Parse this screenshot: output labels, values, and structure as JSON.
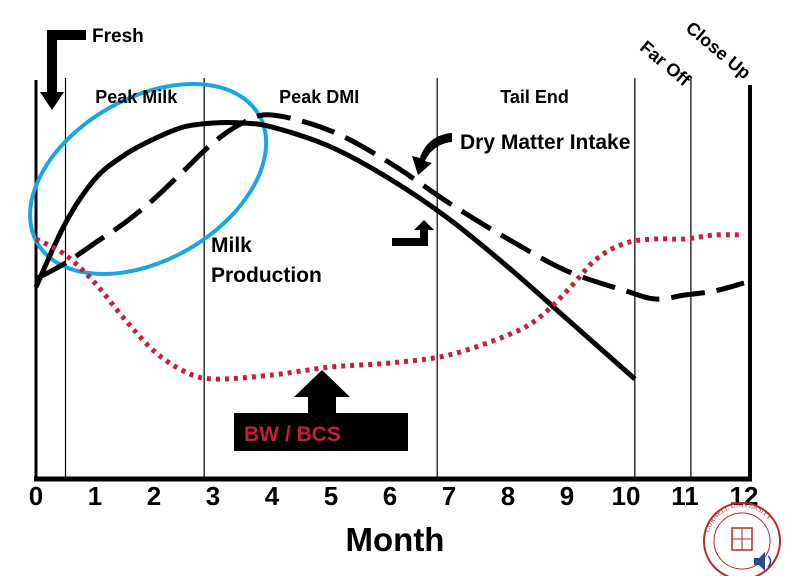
{
  "chart_data": {
    "type": "line",
    "xlabel": "Month",
    "ylabel": "",
    "xlim": [
      0,
      12
    ],
    "ylim": [
      0,
      100
    ],
    "x_ticks": [
      0,
      1,
      2,
      3,
      4,
      5,
      6,
      7,
      8,
      9,
      10,
      11,
      12
    ],
    "phase_dividers": [
      0.5,
      2.85,
      6.8,
      10.15,
      11.1
    ],
    "phases": [
      {
        "label": "Peak Milk",
        "x": 1.7
      },
      {
        "label": "Peak DMI",
        "x": 4.8
      },
      {
        "label": "Tail End",
        "x": 8.45
      },
      {
        "label": "Far Off",
        "x": 10.6,
        "rotated": true
      },
      {
        "label": "Close Up",
        "x": 11.5,
        "rotated": true
      }
    ],
    "annotations": {
      "fresh": "Fresh",
      "dmi": "Dry Matter Intake",
      "milk_line1": "Milk",
      "milk_line2": "Production",
      "bwbcs": "BW / BCS"
    },
    "series": [
      {
        "key": "milk",
        "style": "solid",
        "color": "#000000",
        "x": [
          0,
          0.5,
          1,
          1.5,
          2,
          2.5,
          3,
          3.5,
          4,
          5,
          6,
          7,
          8,
          9,
          10.15
        ],
        "y": [
          48,
          64,
          75,
          81,
          85,
          88,
          89,
          89,
          88,
          83,
          75,
          65,
          53,
          40,
          25
        ]
      },
      {
        "key": "dmi",
        "style": "dashed",
        "color": "#000000",
        "x": [
          0,
          0.5,
          1,
          1.5,
          2,
          2.5,
          3,
          3.5,
          4,
          5,
          6,
          7,
          8,
          9,
          10,
          10.5,
          11,
          11.5,
          12
        ],
        "y": [
          50,
          54,
          59,
          64,
          70,
          77,
          84,
          89,
          91,
          87,
          79,
          69,
          60,
          52,
          47,
          45,
          46,
          47,
          49
        ]
      },
      {
        "key": "bwbcs",
        "style": "dotted",
        "color": "#c41f3c",
        "x": [
          0,
          0.5,
          1,
          1.5,
          2,
          2.5,
          3,
          4,
          5,
          6,
          7,
          8,
          8.5,
          9,
          9.5,
          10,
          10.5,
          11,
          11.5,
          12
        ],
        "y": [
          60,
          56,
          49,
          40,
          32,
          27,
          25,
          26,
          28,
          29,
          31,
          36,
          40,
          47,
          55,
          59,
          60,
          60,
          61,
          61
        ]
      }
    ],
    "highlight": {
      "shape": "ellipse",
      "color": "#1aa7e0",
      "cx": 1.9,
      "cy": 75
    }
  },
  "logo": {
    "name": "cornell-university-seal",
    "text": "CORNELL UNIVERSITY"
  },
  "speaker_icon": "speaker-icon"
}
